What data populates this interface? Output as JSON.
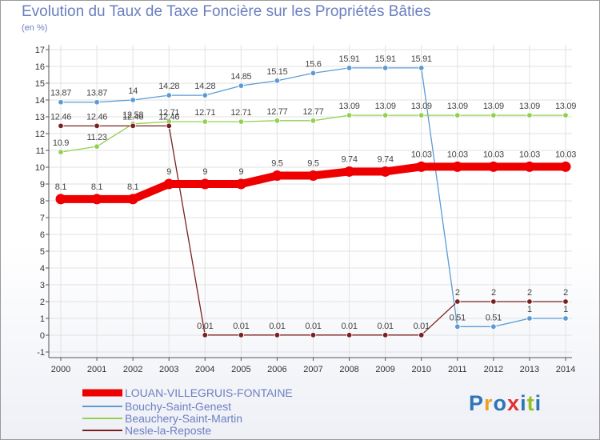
{
  "chart_data": {
    "type": "line",
    "title": "Evolution du Taux de Taxe Foncière sur les Propriétés Bâties",
    "ylabel": "(en %)",
    "xlabel": "",
    "x": [
      "2000",
      "2001",
      "2002",
      "2003",
      "2004",
      "2005",
      "2006",
      "2007",
      "2008",
      "2009",
      "2010",
      "2011",
      "2012",
      "2013",
      "2014"
    ],
    "ylim": [
      -1,
      17
    ],
    "yticks": [
      "-1",
      "0",
      "1",
      "2",
      "3",
      "4",
      "5",
      "6",
      "7",
      "8",
      "9",
      "10",
      "11",
      "12",
      "13",
      "14",
      "15",
      "16",
      "17"
    ],
    "grid": true,
    "legend_position": "bottom-left",
    "series": [
      {
        "name": "LOUAN-VILLEGRUIS-FONTAINE",
        "color": "#ee0000",
        "values": [
          8.1,
          8.1,
          8.1,
          9,
          9,
          9,
          9.5,
          9.5,
          9.74,
          9.74,
          10.03,
          10.03,
          10.03,
          10.03,
          10.03
        ],
        "labels": [
          "8.1",
          "8.1",
          "8.1",
          "9",
          "9",
          "9",
          "9.5",
          "9.5",
          "9.74",
          "9.74",
          "10.03",
          "10.03",
          "10.03",
          "10.03",
          "10.03"
        ]
      },
      {
        "name": "Bouchy-Saint-Genest",
        "color": "#5b9bd5",
        "values": [
          13.87,
          13.87,
          14,
          14.28,
          14.28,
          14.85,
          15.15,
          15.6,
          15.91,
          15.91,
          15.91,
          0.51,
          0.51,
          1,
          1
        ],
        "labels": [
          "13.87",
          "13.87",
          "14",
          "14.28",
          "14.28",
          "14.85",
          "15.15",
          "15.6",
          "15.91",
          "15.91",
          "15.91",
          "0.51",
          "0.51",
          "1",
          "1"
        ]
      },
      {
        "name": "Beauchery-Saint-Martin",
        "color": "#92d050",
        "values": [
          10.9,
          11.23,
          12.58,
          12.71,
          12.71,
          12.71,
          12.77,
          12.77,
          13.09,
          13.09,
          13.09,
          13.09,
          13.09,
          13.09,
          13.09
        ],
        "labels": [
          "10.9",
          "11.23",
          "12.58",
          "12.71",
          "12.71",
          "12.71",
          "12.77",
          "12.77",
          "13.09",
          "13.09",
          "13.09",
          "13.09",
          "13.09",
          "13.09",
          "13.09"
        ]
      },
      {
        "name": "Nesle-la-Reposte",
        "color": "#7b2020",
        "values": [
          12.46,
          12.46,
          12.46,
          12.46,
          0.01,
          0.01,
          0.01,
          0.01,
          0.01,
          0.01,
          0.01,
          2,
          2,
          2,
          2
        ],
        "labels": [
          "12.46",
          "12.46",
          "12.46",
          "12.46",
          "0.01",
          "0.01",
          "0.01",
          "0.01",
          "0.01",
          "0.01",
          "0.01",
          "2",
          "2",
          "2",
          "2"
        ]
      }
    ]
  },
  "logo": {
    "text": "Proxiti",
    "letter_colors": [
      "#2e75b6",
      "#f0a020",
      "#2e75b6",
      "#e03030",
      "#2e75b6",
      "#92c020",
      "#2e75b6"
    ]
  }
}
